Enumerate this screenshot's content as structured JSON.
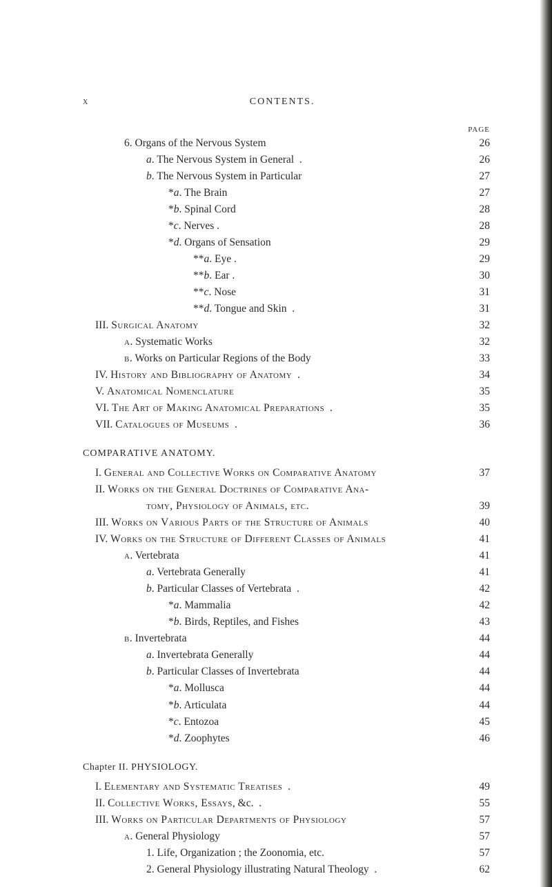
{
  "header": {
    "page_num": "x",
    "title": "CONTENTS.",
    "page_label": "PAGE"
  },
  "blocks": [
    {
      "kind": "line",
      "indent": "ind1",
      "label": "6. Organs of the Nervous System",
      "dots": 3,
      "page": "26"
    },
    {
      "kind": "line",
      "indent": "ind2",
      "label_html": "<i>a</i>. The Nervous System in General&nbsp;&nbsp;.",
      "dots": 3,
      "page": "26"
    },
    {
      "kind": "line",
      "indent": "ind2",
      "label_html": "<i>b</i>. The Nervous System in Particular",
      "dots": 2,
      "page": "27"
    },
    {
      "kind": "line",
      "indent": "ind3",
      "label_html": "*<i>a</i>. The Brain",
      "dots": 5,
      "page": "27"
    },
    {
      "kind": "line",
      "indent": "ind3",
      "label_html": "*<i>b</i>. Spinal Cord",
      "dots": 5,
      "page": "28"
    },
    {
      "kind": "line",
      "indent": "ind3",
      "label_html": "*<i>c</i>. Nerves .",
      "dots": 5,
      "page": "28"
    },
    {
      "kind": "line",
      "indent": "ind3",
      "label_html": "*<i>d</i>. Organs of Sensation",
      "dots": 4,
      "page": "29"
    },
    {
      "kind": "line",
      "indent": "ind4",
      "label_html": "**<i>a</i>. Eye .",
      "dots": 5,
      "page": "29"
    },
    {
      "kind": "line",
      "indent": "ind4",
      "label_html": "**<i>b</i>. Ear .",
      "dots": 5,
      "page": "30"
    },
    {
      "kind": "line",
      "indent": "ind4",
      "label_html": "**<i>c</i>. Nose",
      "dots": 5,
      "page": "31"
    },
    {
      "kind": "line",
      "indent": "ind4",
      "label_html": "**<i>d</i>. Tongue and Skin&nbsp;&nbsp;.",
      "dots": 4,
      "page": "31"
    },
    {
      "kind": "line",
      "indent": "ind0",
      "label_html": "III. <span class=\"smallcaps\">Surgical Anatomy</span>",
      "dots": 5,
      "page": "32"
    },
    {
      "kind": "line",
      "indent": "ind1",
      "label_html": "<span class=\"smallcaps\">a</span>. Systematic Works",
      "dots": 5,
      "page": "32"
    },
    {
      "kind": "line",
      "indent": "ind1",
      "label_html": "<span class=\"smallcaps\">b</span>. Works on Particular Regions of the Body",
      "dots": 2,
      "page": "33"
    },
    {
      "kind": "line",
      "indent": "ind0",
      "label_html": "IV. <span class=\"smallcaps\">History and Bibliography of Anatomy</span>&nbsp;&nbsp;.",
      "dots": 3,
      "page": "34"
    },
    {
      "kind": "line",
      "indent": "ind0",
      "label_html": "V. <span class=\"smallcaps\">Anatomical Nomenclature</span>",
      "dots": 4,
      "page": "35"
    },
    {
      "kind": "line",
      "indent": "ind0",
      "label_html": "VI. <span class=\"smallcaps\">The Art of Making Anatomical Preparations</span>&nbsp;&nbsp;.",
      "dots": 2,
      "page": "35"
    },
    {
      "kind": "line",
      "indent": "ind0",
      "label_html": "VII. <span class=\"smallcaps\">Catalogues of Museums</span>&nbsp;&nbsp;.",
      "dots": 4,
      "page": "36"
    },
    {
      "kind": "section",
      "label": "COMPARATIVE ANATOMY."
    },
    {
      "kind": "line",
      "indent": "ind0",
      "label_html": "I. <span class=\"smallcaps\">General and Collective Works on Comparative Anatomy</span>",
      "dots": 0,
      "page": "37"
    },
    {
      "kind": "line",
      "indent": "ind0",
      "label_html": "II. <span class=\"smallcaps\">Works on the General Doctrines of Comparative Ana-</span>",
      "dots": 0,
      "page": "",
      "nopg": true
    },
    {
      "kind": "line",
      "indent": "ind2",
      "label_html": "<span class=\"smallcaps\">tomy, Physiology of Animals, etc.</span>",
      "dots": 3,
      "page": "39"
    },
    {
      "kind": "line",
      "indent": "ind0",
      "label_html": "III. <span class=\"smallcaps\">Works on Various Parts of the Structure of Animals</span>",
      "dots": 0,
      "page": "40"
    },
    {
      "kind": "line",
      "indent": "ind0",
      "label_html": "IV. <span class=\"smallcaps\">Works on the Structure of Different Classes of Animals</span>",
      "dots": 0,
      "page": "41"
    },
    {
      "kind": "line",
      "indent": "ind1",
      "label_html": "<span class=\"smallcaps\">a</span>. Vertebrata",
      "dots": 6,
      "page": "41"
    },
    {
      "kind": "line",
      "indent": "ind2",
      "label_html": "<i>a</i>. Vertebrata Generally",
      "dots": 4,
      "page": "41"
    },
    {
      "kind": "line",
      "indent": "ind2",
      "label_html": "<i>b</i>. Particular Classes of Vertebrata&nbsp;&nbsp;.",
      "dots": 3,
      "page": "42"
    },
    {
      "kind": "line",
      "indent": "ind3",
      "label_html": "*<i>a</i>. Mammalia",
      "dots": 5,
      "page": "42"
    },
    {
      "kind": "line",
      "indent": "ind3",
      "label_html": "*<i>b</i>. Birds, Reptiles, and Fishes",
      "dots": 3,
      "page": "43"
    },
    {
      "kind": "line",
      "indent": "ind1",
      "label_html": "<span class=\"smallcaps\">b</span>. Invertebrata",
      "dots": 6,
      "page": "44"
    },
    {
      "kind": "line",
      "indent": "ind2",
      "label_html": "<i>a</i>. Invertebrata Generally",
      "dots": 4,
      "page": "44"
    },
    {
      "kind": "line",
      "indent": "ind2",
      "label_html": "<i>b</i>. Particular Classes of Invertebrata",
      "dots": 2,
      "page": "44"
    },
    {
      "kind": "line",
      "indent": "ind3",
      "label_html": "*<i>a</i>. Mollusca",
      "dots": 5,
      "page": "44"
    },
    {
      "kind": "line",
      "indent": "ind3",
      "label_html": "*<i>b</i>. Articulata",
      "dots": 5,
      "page": "44"
    },
    {
      "kind": "line",
      "indent": "ind3",
      "label_html": "*<i>c</i>. Entozoa",
      "dots": 5,
      "page": "45"
    },
    {
      "kind": "line",
      "indent": "ind3",
      "label_html": "*<i>d</i>. Zoophytes",
      "dots": 5,
      "page": "46"
    },
    {
      "kind": "chapter",
      "label_html": "<span class=\"smallcaps\">Chapter</span> II. PHYSIOLOGY."
    },
    {
      "kind": "line",
      "indent": "ind0",
      "label_html": "I. <span class=\"smallcaps\">Elementary and Systematic Treatises</span>&nbsp;&nbsp;.",
      "dots": 3,
      "page": "49"
    },
    {
      "kind": "line",
      "indent": "ind0",
      "label_html": "II. <span class=\"smallcaps\">Collective Works, Essays</span>, &amp;c.&nbsp;&nbsp;.",
      "dots": 4,
      "page": "55"
    },
    {
      "kind": "line",
      "indent": "ind0",
      "label_html": "III. <span class=\"smallcaps\">Works on Particular Departments of Physiology</span>",
      "dots": 1,
      "page": "57"
    },
    {
      "kind": "line",
      "indent": "ind1",
      "label_html": "<span class=\"smallcaps\">a</span>. General Physiology",
      "dots": 5,
      "page": "57"
    },
    {
      "kind": "line",
      "indent": "ind2",
      "label_html": "1. Life, Organization ; the Zoonomia, etc.",
      "dots": 2,
      "page": "57"
    },
    {
      "kind": "line",
      "indent": "ind2",
      "label_html": "2. General Physiology illustrating Natural Theology&nbsp;&nbsp;.",
      "dots": 1,
      "page": "62"
    }
  ]
}
